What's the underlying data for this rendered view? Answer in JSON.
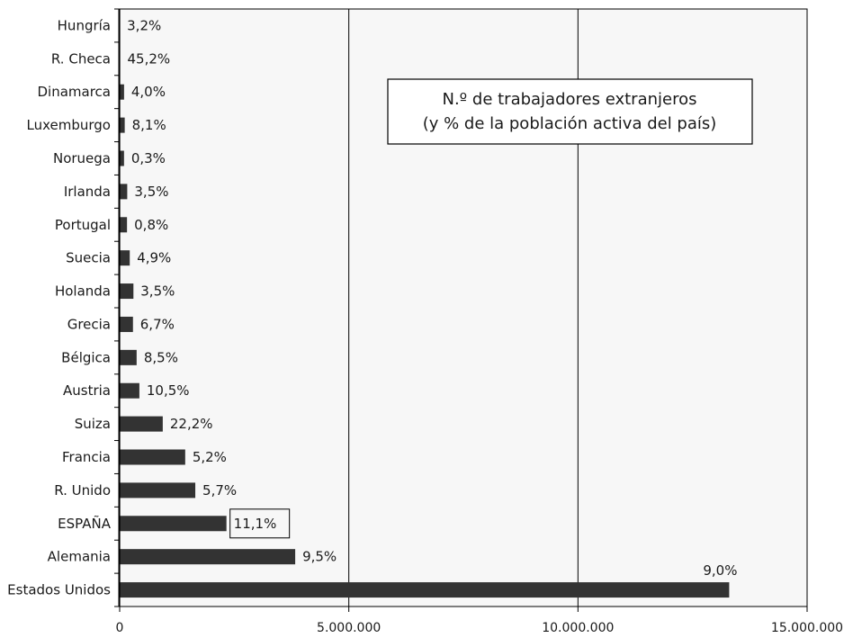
{
  "chart_data": {
    "type": "bar",
    "orientation": "horizontal",
    "title": "",
    "legend_box": {
      "line1": "N.º de trabajadores extranjeros",
      "line2": "(y % de la población activa del país)"
    },
    "xlim": [
      0,
      15000000
    ],
    "xticks": [
      {
        "value": 0,
        "label": "0"
      },
      {
        "value": 5000000,
        "label": "5.000.000"
      },
      {
        "value": 10000000,
        "label": "10.000.000"
      },
      {
        "value": 15000000,
        "label": "15.000.000"
      }
    ],
    "gridlines_x": [
      5000000,
      10000000
    ],
    "bar_color": "#333333",
    "highlight_category": "ESPAÑA",
    "categories": [
      "Hungría",
      "R. Checa",
      "Dinamarca",
      "Luxemburgo",
      "Noruega",
      "Irlanda",
      "Portugal",
      "Suecia",
      "Holanda",
      "Grecia",
      "Bélgica",
      "Austria",
      "Suiza",
      "Francia",
      "R. Unido",
      "ESPAÑA",
      "Alemania",
      "Estados Unidos"
    ],
    "values": [
      3000,
      10000,
      96000,
      110000,
      95000,
      165000,
      160000,
      220000,
      300000,
      290000,
      370000,
      430000,
      940000,
      1430000,
      1650000,
      2330000,
      3830000,
      13300000
    ],
    "data_labels": [
      "3,2%",
      "45,2%",
      "4,0%",
      "8,1%",
      "0,3%",
      "3,5%",
      "0,8%",
      "4,9%",
      "3,5%",
      "6,7%",
      "8,5%",
      "10,5%",
      "22,2%",
      "5,2%",
      "5,7%",
      "11,1%",
      "9,5%",
      "9,0%"
    ]
  }
}
